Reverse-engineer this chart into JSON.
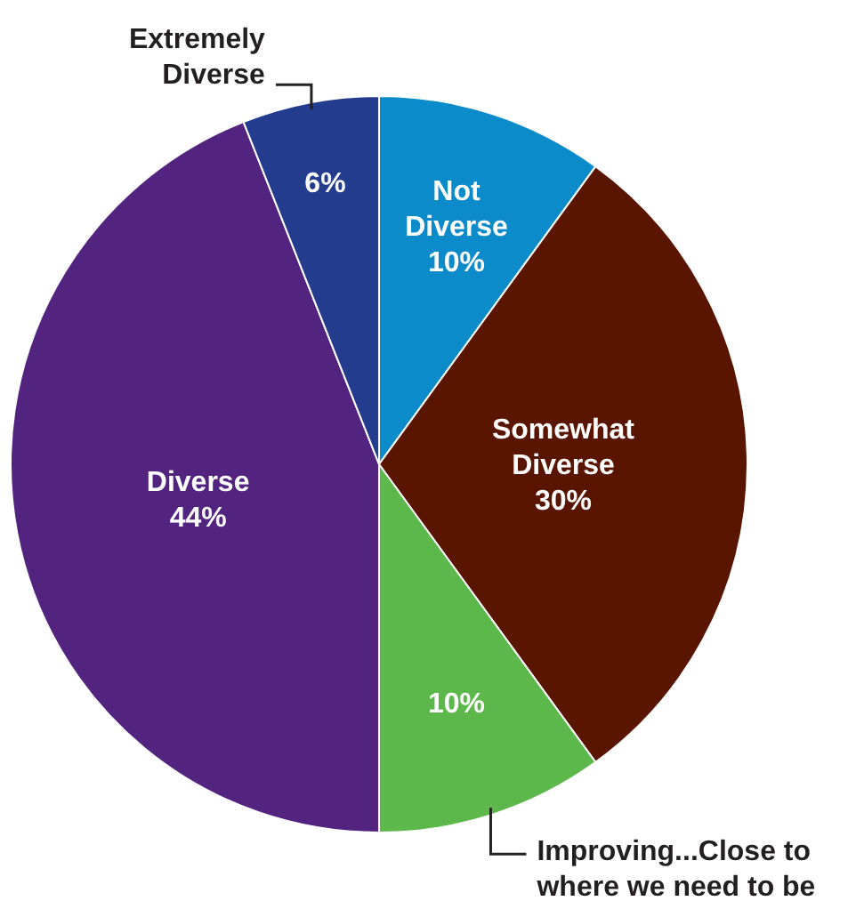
{
  "chart_data": {
    "type": "pie",
    "categories": [
      "Not Diverse",
      "Somewhat Diverse",
      "Improving...Close to where we need to be",
      "Diverse",
      "Extremely Diverse"
    ],
    "values": [
      10,
      30,
      10,
      44,
      6
    ],
    "colors": [
      "#0b8bc9",
      "#5a1500",
      "#5cb84b",
      "#53247f",
      "#243c8e"
    ],
    "value_labels": [
      "10%",
      "30%",
      "10%",
      "44%",
      "6%"
    ]
  }
}
